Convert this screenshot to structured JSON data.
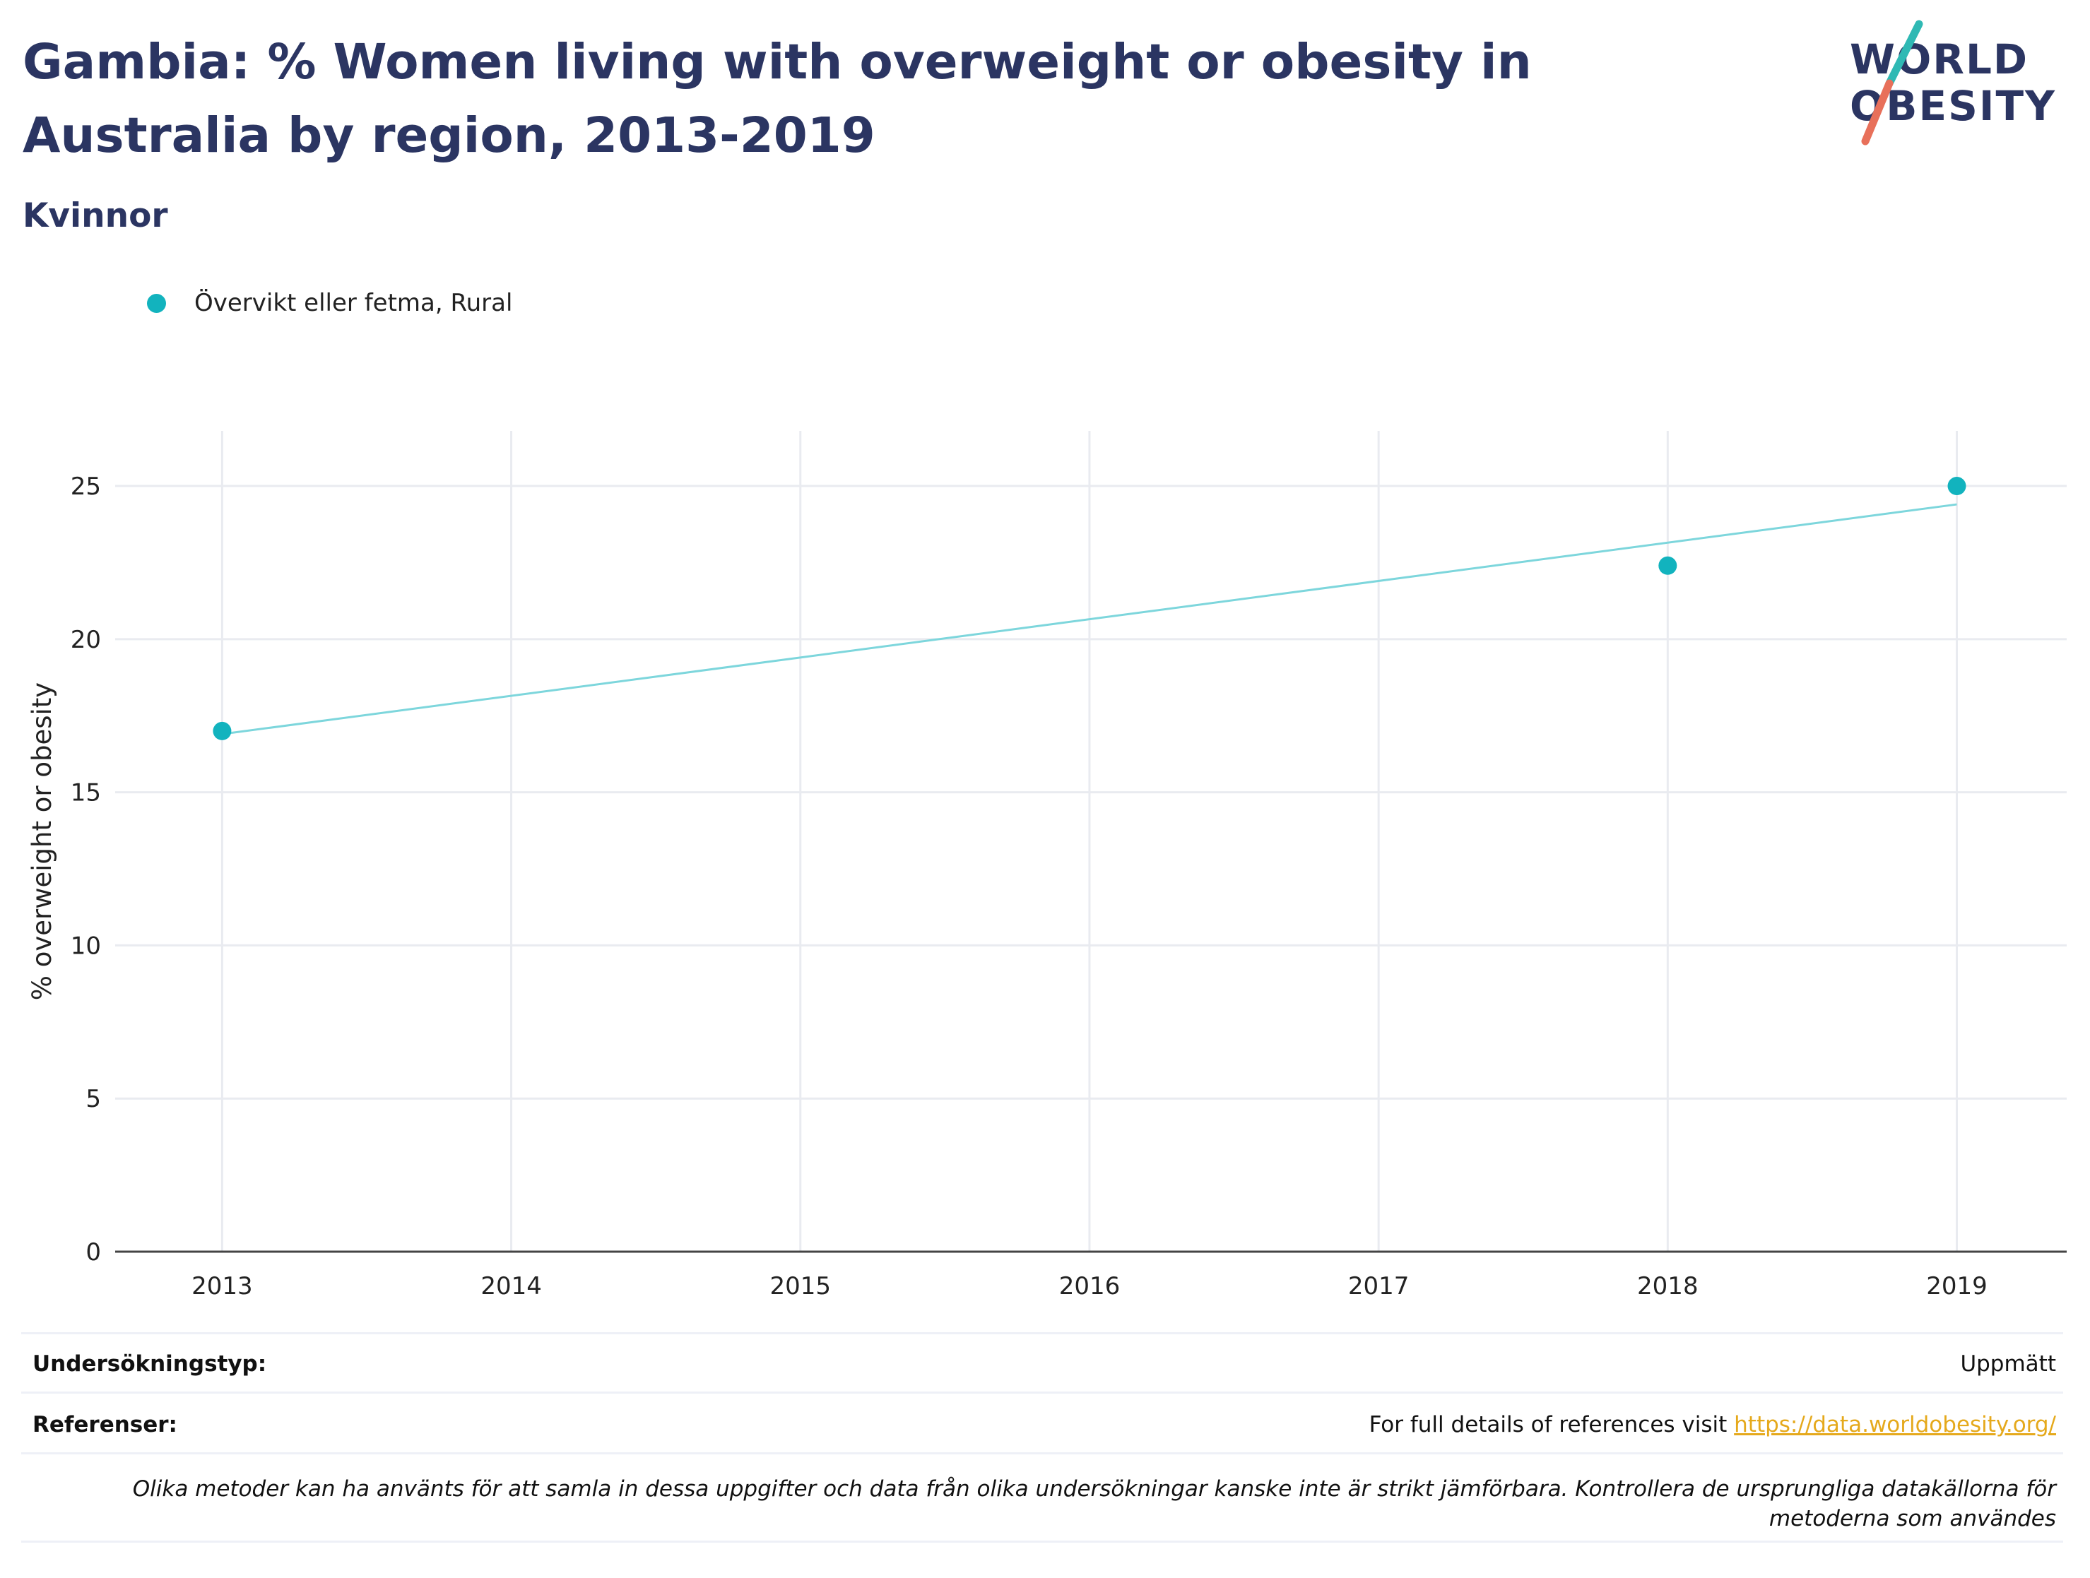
{
  "header": {
    "title": "Gambia: % Women living with overweight or obesity in Australia by region, 2013-2019",
    "subtitle": "Kvinnor"
  },
  "logo": {
    "line1": "WORLD",
    "line2": "OBESITY"
  },
  "colors": {
    "series": "#12b3be",
    "trend": "#7dd6dc",
    "title": "#2b3562",
    "link": "#e5a91c"
  },
  "chart_data": {
    "type": "scatter",
    "ylabel": "% overweight or obesity",
    "xlabel": "",
    "x_ticks": [
      "2013",
      "2014",
      "2015",
      "2016",
      "2017",
      "2018",
      "2019"
    ],
    "y_ticks": [
      "0",
      "5",
      "10",
      "15",
      "20",
      "25"
    ],
    "xlim": [
      2012.63,
      2019.38
    ],
    "ylim": [
      0,
      26.8
    ],
    "grid": true,
    "legend_position": "top-left",
    "series": [
      {
        "name": "Övervikt eller fetma, Rural",
        "points": [
          {
            "x": 2013,
            "y": 17.0
          },
          {
            "x": 2018,
            "y": 22.4
          },
          {
            "x": 2019,
            "y": 25.0
          }
        ]
      }
    ],
    "trendline": {
      "x": [
        2013,
        2019
      ],
      "y": [
        16.9,
        24.4
      ]
    }
  },
  "footer": {
    "survey_label": "Undersökningstyp:",
    "survey_value": "Uppmätt",
    "refs_label": "Referenser:",
    "refs_text": "For full details of references visit ",
    "refs_link": "https://data.worldobesity.org/",
    "note": "Olika metoder kan ha använts för att samla in dessa uppgifter och data från olika undersökningar kanske inte är strikt jämförbara. Kontrollera de ursprungliga datakällorna för metoderna som användes"
  }
}
